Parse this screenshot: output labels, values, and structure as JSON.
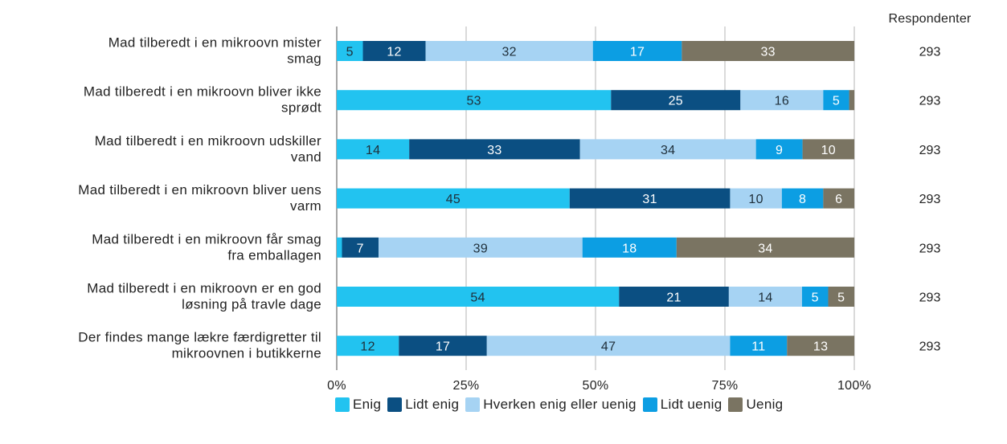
{
  "chart_data": {
    "type": "bar",
    "orientation": "horizontal",
    "stacked": true,
    "percent_scale": true,
    "categories": [
      [
        "Mad tilberedt i en mikroovn mister",
        "smag"
      ],
      [
        "Mad tilberedt i en mikroovn bliver ikke",
        "sprødt"
      ],
      [
        "Mad tilberedt i en mikroovn udskiller",
        "vand"
      ],
      [
        "Mad tilberedt i en mikroovn bliver uens",
        "varm"
      ],
      [
        "Mad tilberedt i en mikroovn får smag",
        "fra emballagen"
      ],
      [
        "Mad tilberedt i en mikroovn er en god",
        "løsning på travle dage"
      ],
      [
        "Der findes mange lækre færdigretter til",
        "mikroovnen i butikkerne"
      ]
    ],
    "series": [
      {
        "name": "Enig",
        "color": "#22c3f0",
        "text_color": "#1f2f3a",
        "values": [
          5,
          53,
          14,
          45,
          1,
          54,
          12
        ],
        "labels": [
          "5",
          "53",
          "14",
          "45",
          "",
          "54",
          "12"
        ]
      },
      {
        "name": "Lidt enig",
        "color": "#0b4f82",
        "text_color": "#ffffff",
        "values": [
          12,
          25,
          33,
          31,
          7,
          21,
          17
        ],
        "labels": [
          "12",
          "25",
          "33",
          "31",
          "7",
          "21",
          "17"
        ]
      },
      {
        "name": "Hverken enig eller uenig",
        "color": "#a6d3f3",
        "text_color": "#1f2f3a",
        "values": [
          32,
          16,
          34,
          10,
          39,
          14,
          47
        ],
        "labels": [
          "32",
          "16",
          "34",
          "10",
          "39",
          "14",
          "47"
        ]
      },
      {
        "name": "Lidt uenig",
        "color": "#0c9ee3",
        "text_color": "#ffffff",
        "values": [
          17,
          5,
          9,
          8,
          18,
          5,
          11
        ],
        "labels": [
          "17",
          "5",
          "9",
          "8",
          "18",
          "5",
          "11"
        ]
      },
      {
        "name": "Uenig",
        "color": "#7a7462",
        "text_color": "#ffffff",
        "values": [
          33,
          1,
          10,
          6,
          34,
          5,
          13
        ],
        "labels": [
          "33",
          "",
          "10",
          "6",
          "34",
          "5",
          "13"
        ]
      }
    ],
    "respondents_title": "Respondenter",
    "respondents": [
      "293",
      "293",
      "293",
      "293",
      "293",
      "293",
      "293"
    ],
    "x_ticks": [
      "0%",
      "25%",
      "50%",
      "75%",
      "100%"
    ],
    "xlim": [
      0,
      100
    ],
    "grid": true,
    "legend_position": "bottom"
  }
}
